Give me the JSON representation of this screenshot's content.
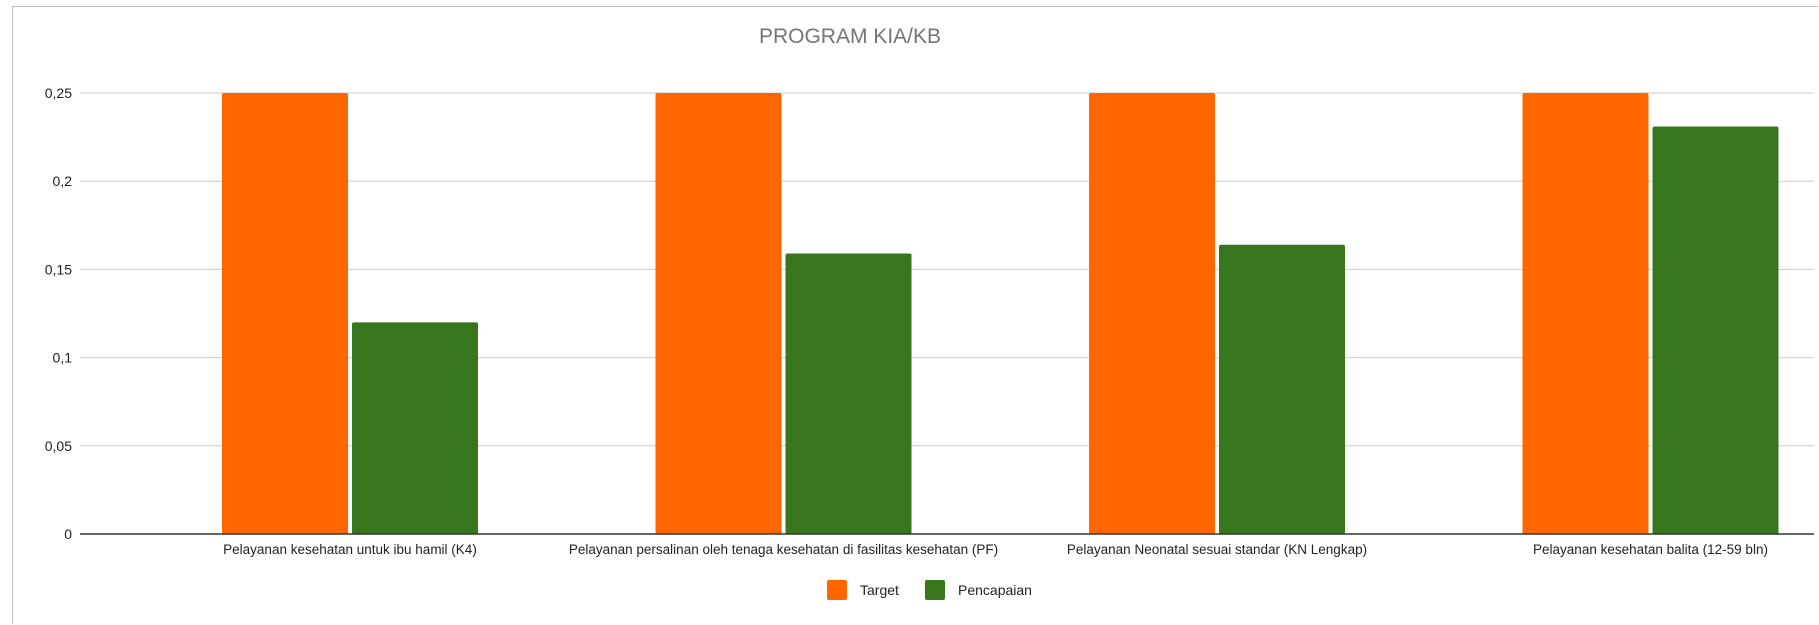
{
  "chart_data": {
    "type": "bar",
    "title": "PROGRAM KIA/KB",
    "xlabel": "",
    "ylabel": "",
    "ylim": [
      0,
      0.25
    ],
    "yticks": [
      {
        "value": 0,
        "label": "0"
      },
      {
        "value": 0.05,
        "label": "0,05"
      },
      {
        "value": 0.1,
        "label": "0,1"
      },
      {
        "value": 0.15,
        "label": "0,15"
      },
      {
        "value": 0.2,
        "label": "0,2"
      },
      {
        "value": 0.25,
        "label": "0,25"
      }
    ],
    "grid": true,
    "legend_position": "bottom",
    "categories": [
      "Pelayanan kesehatan untuk ibu hamil (K4)",
      "Pelayanan persalinan oleh tenaga kesehatan di fasilitas kesehatan (PF)",
      "Pelayanan Neonatal sesuai standar (KN Lengkap)",
      "Pelayanan kesehatan balita (12-59 bln)"
    ],
    "series": [
      {
        "name": "Target",
        "color": "#ff6600",
        "values": [
          0.25,
          0.25,
          0.25,
          0.25
        ]
      },
      {
        "name": "Pencapaian",
        "color": "#38761d",
        "values": [
          0.12,
          0.159,
          0.164,
          0.231
        ]
      }
    ]
  }
}
